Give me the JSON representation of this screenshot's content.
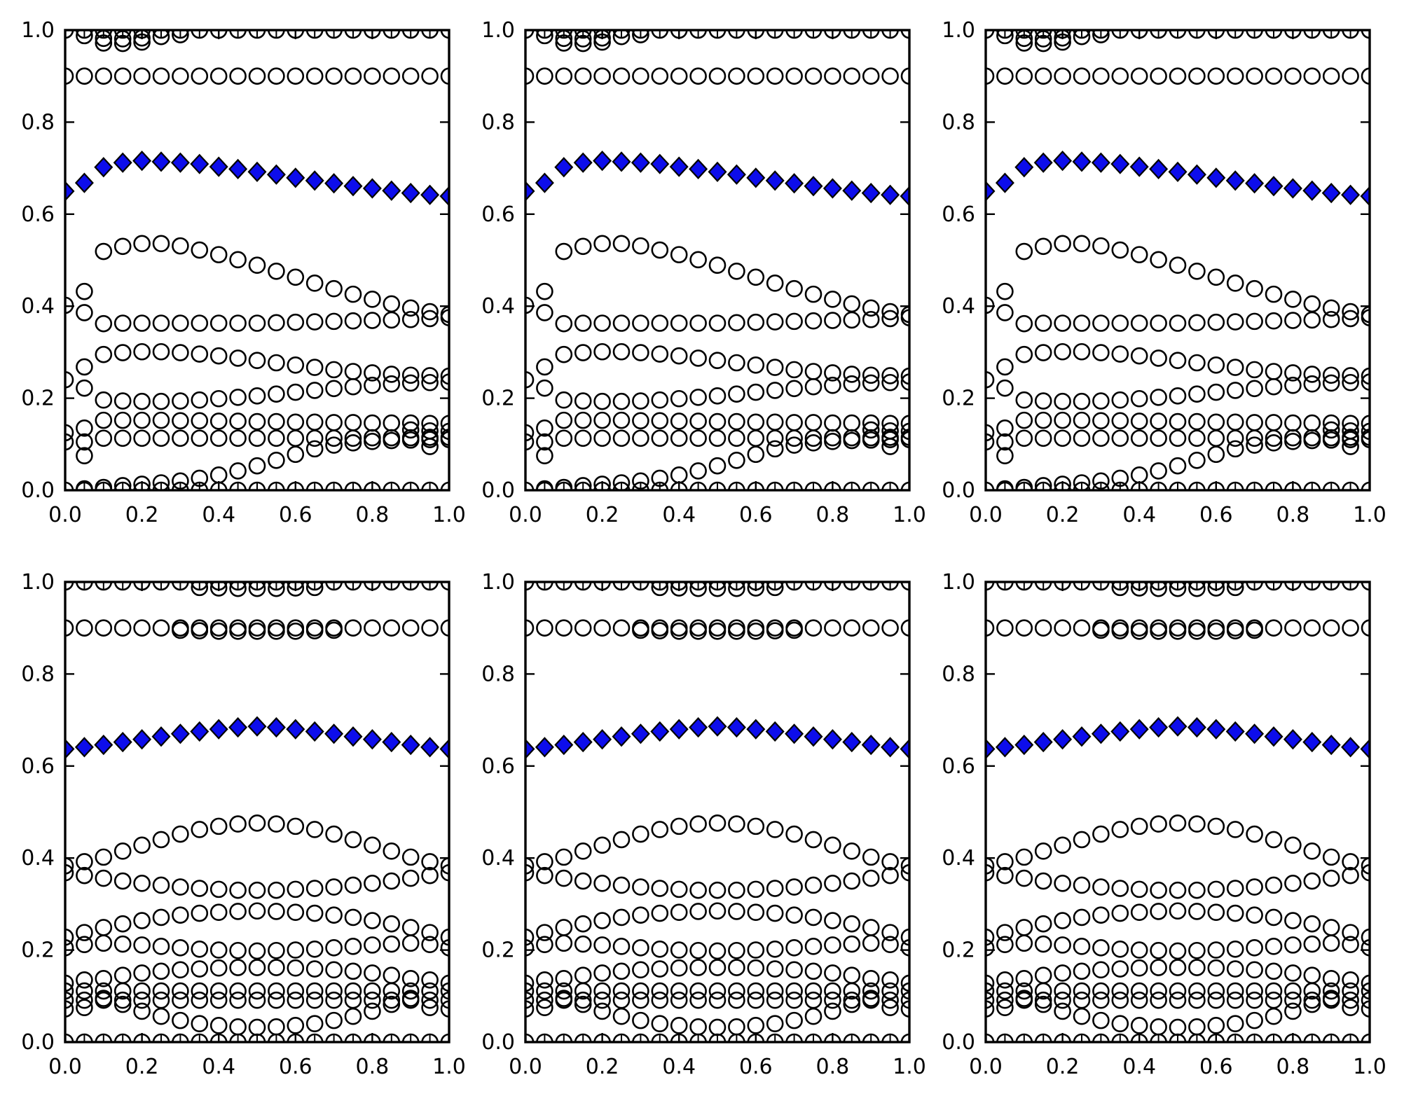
{
  "chart_data": {
    "type": "scatter",
    "title": "",
    "figure": {
      "background": "#ffffff",
      "rows": 2,
      "cols": 3,
      "grid": false,
      "legend": "none"
    },
    "axes": {
      "xlim": [
        0,
        1
      ],
      "ylim": [
        0,
        1
      ],
      "xlabel": "",
      "ylabel": "",
      "xticks": [
        0,
        0.2,
        0.4,
        0.6,
        0.8,
        1.0
      ],
      "yticks": [
        0,
        0.2,
        0.4,
        0.6,
        0.8,
        1.0
      ],
      "xtick_labels": [
        "0.0",
        "0.2",
        "0.4",
        "0.6",
        "0.8",
        "1.0"
      ],
      "ytick_labels": [
        "0.0",
        "0.2",
        "0.4",
        "0.6",
        "0.8",
        "1.0"
      ],
      "tick_direction": "in",
      "frame": true,
      "frame_color": "#000000"
    },
    "markers": {
      "circle": {
        "shape": "o",
        "fill": "none",
        "stroke": "#000000"
      },
      "diamond": {
        "shape": "D",
        "fill": "#0d0deb",
        "stroke": "#000000"
      },
      "tick": {
        "shape": "|",
        "stroke": "#000000"
      }
    },
    "x_grid": {
      "start": 0,
      "step": 0.05,
      "count": 21
    },
    "panels": [
      {
        "name": "top-left",
        "row": 0,
        "col": 0,
        "series_set": "top"
      },
      {
        "name": "top-middle",
        "row": 0,
        "col": 1,
        "series_set": "top"
      },
      {
        "name": "top-right",
        "row": 0,
        "col": 2,
        "series_set": "top"
      },
      {
        "name": "bottom-left",
        "row": 1,
        "col": 0,
        "series_set": "bottom"
      },
      {
        "name": "bottom-middle",
        "row": 1,
        "col": 1,
        "series_set": "bottom"
      },
      {
        "name": "bottom-right",
        "row": 1,
        "col": 2,
        "series_set": "bottom"
      }
    ],
    "series_sets": {
      "top": [
        {
          "name": "level-one",
          "marker": "circle_tick",
          "x": "grid",
          "y_const": 1.0
        },
        {
          "name": "near-one-a",
          "marker": "circle",
          "x": [
            0.05,
            0.1,
            0.15,
            0.2,
            0.25,
            0.3
          ],
          "y": [
            0.988,
            0.982,
            0.981,
            0.983,
            0.986,
            0.99
          ]
        },
        {
          "name": "near-one-b",
          "marker": "circle",
          "x": [
            0.1,
            0.15,
            0.2
          ],
          "y": [
            0.972,
            0.971,
            0.974
          ]
        },
        {
          "name": "level-09",
          "marker": "circle",
          "x": "grid",
          "y_const": 0.9
        },
        {
          "name": "diamond-band",
          "marker": "diamond",
          "x": "grid",
          "y": [
            0.65,
            0.668,
            0.702,
            0.712,
            0.716,
            0.714,
            0.712,
            0.709,
            0.703,
            0.698,
            0.692,
            0.686,
            0.679,
            0.673,
            0.667,
            0.661,
            0.656,
            0.651,
            0.646,
            0.642,
            0.639
          ]
        },
        {
          "name": "arc-upper",
          "marker": "circle",
          "x_start": 0.1,
          "y": [
            0.519,
            0.53,
            0.536,
            0.536,
            0.531,
            0.522,
            0.512,
            0.501,
            0.489,
            0.476,
            0.463,
            0.45,
            0.438,
            0.426,
            0.415,
            0.405,
            0.396,
            0.388,
            0.382
          ]
        },
        {
          "name": "level-036",
          "marker": "circle",
          "x_start": 0.1,
          "y": [
            0.362,
            0.363,
            0.363,
            0.363,
            0.363,
            0.363,
            0.363,
            0.363,
            0.363,
            0.364,
            0.365,
            0.366,
            0.367,
            0.368,
            0.369,
            0.37,
            0.371,
            0.373,
            0.375
          ]
        },
        {
          "name": "desc-029",
          "marker": "circle",
          "x_start": 0.1,
          "y": [
            0.295,
            0.299,
            0.301,
            0.301,
            0.299,
            0.296,
            0.292,
            0.287,
            0.282,
            0.277,
            0.272,
            0.267,
            0.262,
            0.258,
            0.255,
            0.252,
            0.25,
            0.249,
            0.248
          ]
        },
        {
          "name": "line-020",
          "marker": "circle",
          "x_start": 0.1,
          "y": [
            0.196,
            0.194,
            0.193,
            0.193,
            0.194,
            0.196,
            0.199,
            0.202,
            0.205,
            0.209,
            0.213,
            0.217,
            0.221,
            0.225,
            0.228,
            0.231,
            0.233,
            0.234,
            0.235
          ]
        },
        {
          "name": "level-015",
          "marker": "circle",
          "x_start": 0.1,
          "y": [
            0.152,
            0.152,
            0.152,
            0.152,
            0.151,
            0.151,
            0.15,
            0.15,
            0.149,
            0.149,
            0.148,
            0.148,
            0.147,
            0.147,
            0.146,
            0.146,
            0.146,
            0.145,
            0.145
          ]
        },
        {
          "name": "level-011",
          "marker": "circle",
          "x_start": 0.1,
          "y": [
            0.113,
            0.113,
            0.113,
            0.113,
            0.113,
            0.113,
            0.113,
            0.113,
            0.113,
            0.113,
            0.113,
            0.113,
            0.113,
            0.113,
            0.114,
            0.114,
            0.114,
            0.115,
            0.115
          ]
        },
        {
          "name": "rise-from-zero",
          "marker": "circle",
          "x_start": 0.05,
          "y": [
            0.003,
            0.006,
            0.01,
            0.013,
            0.016,
            0.02,
            0.026,
            0.033,
            0.042,
            0.053,
            0.065,
            0.078,
            0.09,
            0.098,
            0.103,
            0.106,
            0.108,
            0.109,
            0.11,
            0.11
          ]
        },
        {
          "name": "level-zero",
          "marker": "circle_tick",
          "x": "grid",
          "y_const": 0.0
        },
        {
          "name": "left-edge-extras",
          "marker": "circle",
          "x": [
            0,
            0,
            0,
            0,
            0.05,
            0.05,
            0.05,
            0.05,
            0.05,
            0.05,
            0.05
          ],
          "y": [
            0.402,
            0.24,
            0.125,
            0.105,
            0.432,
            0.386,
            0.268,
            0.222,
            0.135,
            0.105,
            0.075
          ]
        },
        {
          "name": "right-edge-extras",
          "marker": "circle",
          "x": [
            0.9,
            0.95,
            1.0,
            0.95
          ],
          "y": [
            0.131,
            0.129,
            0.128,
            0.095
          ]
        }
      ],
      "bottom": [
        {
          "name": "level-one",
          "marker": "circle_tick",
          "x": "grid",
          "y_const": 1.0
        },
        {
          "name": "near-one-mid",
          "marker": "circle",
          "x": [
            0.35,
            0.4,
            0.45,
            0.5,
            0.55,
            0.6,
            0.65
          ],
          "y": [
            0.988,
            0.987,
            0.986,
            0.986,
            0.986,
            0.987,
            0.988
          ]
        },
        {
          "name": "level-09",
          "marker": "circle",
          "x": "grid",
          "y_const": 0.9
        },
        {
          "name": "level-089-mid",
          "marker": "circle",
          "x_start": 0.3,
          "y": [
            0.895,
            0.894,
            0.893,
            0.893,
            0.893,
            0.893,
            0.893,
            0.894,
            0.895
          ]
        },
        {
          "name": "diamond-band",
          "marker": "diamond",
          "x": "grid",
          "y": [
            0.637,
            0.641,
            0.646,
            0.652,
            0.658,
            0.664,
            0.67,
            0.675,
            0.68,
            0.684,
            0.686,
            0.684,
            0.68,
            0.675,
            0.67,
            0.664,
            0.658,
            0.652,
            0.646,
            0.641,
            0.637
          ]
        },
        {
          "name": "arch-up",
          "marker": "circle",
          "x": "grid",
          "y": [
            0.383,
            0.392,
            0.402,
            0.415,
            0.428,
            0.44,
            0.452,
            0.462,
            0.469,
            0.474,
            0.476,
            0.474,
            0.469,
            0.462,
            0.452,
            0.44,
            0.428,
            0.415,
            0.402,
            0.392,
            0.383
          ]
        },
        {
          "name": "sag-034",
          "marker": "circle",
          "x": "grid",
          "y": [
            0.368,
            0.362,
            0.356,
            0.35,
            0.345,
            0.341,
            0.337,
            0.334,
            0.332,
            0.33,
            0.33,
            0.33,
            0.332,
            0.334,
            0.337,
            0.341,
            0.345,
            0.35,
            0.356,
            0.362,
            0.368
          ]
        },
        {
          "name": "arch-028",
          "marker": "circle",
          "x": "grid",
          "y": [
            0.228,
            0.238,
            0.249,
            0.257,
            0.264,
            0.271,
            0.276,
            0.28,
            0.282,
            0.284,
            0.285,
            0.284,
            0.282,
            0.28,
            0.276,
            0.271,
            0.264,
            0.257,
            0.249,
            0.238,
            0.228
          ]
        },
        {
          "name": "sag-021",
          "marker": "circle",
          "x": "grid",
          "y": [
            0.205,
            0.212,
            0.215,
            0.213,
            0.211,
            0.208,
            0.205,
            0.202,
            0.2,
            0.199,
            0.198,
            0.199,
            0.2,
            0.202,
            0.205,
            0.208,
            0.211,
            0.213,
            0.215,
            0.212,
            0.205
          ]
        },
        {
          "name": "arch-016",
          "marker": "circle",
          "x_start": 0.1,
          "y": [
            0.138,
            0.145,
            0.15,
            0.154,
            0.157,
            0.159,
            0.161,
            0.162,
            0.162,
            0.162,
            0.161,
            0.159,
            0.157,
            0.154,
            0.15,
            0.145,
            0.138
          ]
        },
        {
          "name": "band-0111",
          "marker": "circle",
          "x": "grid",
          "y_const": 0.111
        },
        {
          "name": "band-0091",
          "marker": "circle",
          "x": "grid",
          "y_const": 0.091
        },
        {
          "name": "dip",
          "marker": "circle",
          "x_start": 0.1,
          "y": [
            0.095,
            0.082,
            0.067,
            0.056,
            0.047,
            0.04,
            0.036,
            0.033,
            0.032,
            0.033,
            0.036,
            0.04,
            0.047,
            0.056,
            0.067,
            0.082,
            0.095
          ]
        },
        {
          "name": "level-zero",
          "marker": "circle_tick",
          "x": "grid",
          "y_const": 0.0
        },
        {
          "name": "left-edge-extras",
          "marker": "circle",
          "x": [
            0,
            0,
            0.05,
            0.05
          ],
          "y": [
            0.128,
            0.072,
            0.135,
            0.075
          ]
        },
        {
          "name": "right-edge-extras",
          "marker": "circle",
          "x": [
            0.95,
            0.95,
            1.0,
            1.0
          ],
          "y": [
            0.135,
            0.075,
            0.128,
            0.072
          ]
        }
      ]
    }
  }
}
